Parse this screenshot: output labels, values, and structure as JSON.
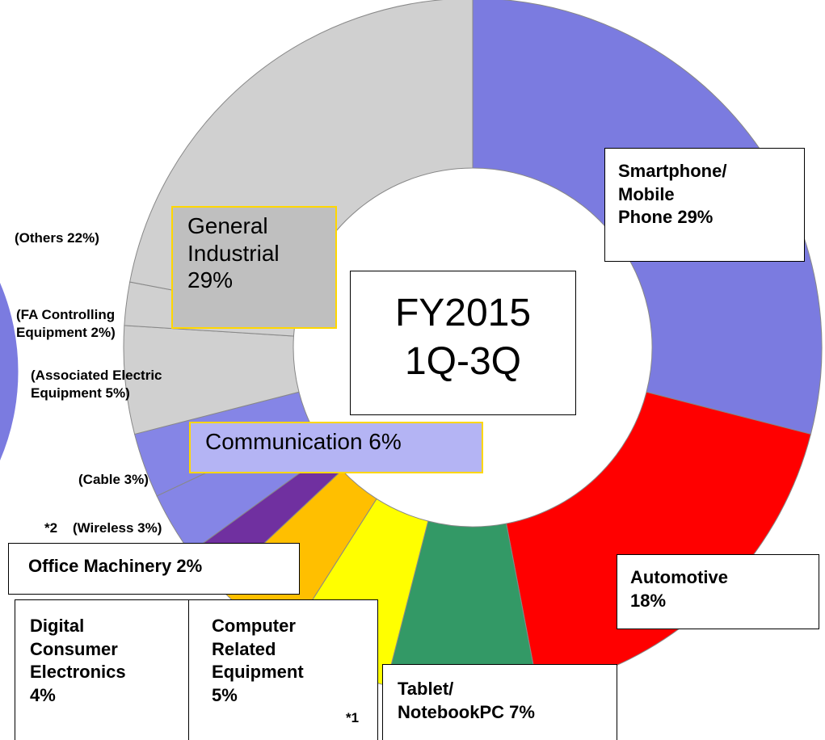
{
  "chart_data": {
    "type": "donut",
    "categories": [
      "Smartphone/\nMobile\nPhone 29%",
      "Automotive\n18%",
      "Tablet/\nNotebookPC 7%",
      "Computer\nRelated\nEquipment\n5%",
      "Digital\nConsumer\nElectronics\n4%",
      "Office Machinery 2%",
      "(Wireless 3%)",
      "(Cable 3%)",
      "(Associated Electric\nEquipment  5%)",
      "(FA Controlling\nEquipment 2%)",
      "(Others 22%)"
    ],
    "values": [
      29,
      18,
      7,
      5,
      4,
      2,
      3,
      3,
      5,
      2,
      22
    ],
    "colors": [
      "#7b7be0",
      "#ff0000",
      "#339966",
      "#ffff00",
      "#ffbf00",
      "#7030a0",
      "#8585e6",
      "#8585e6",
      "#d0d0d0",
      "#d0d0d0",
      "#d0d0d0"
    ],
    "center_label": "FY2015\n1Q-3Q",
    "group_labels": [
      "General\nIndustrial\n29%",
      "Communication 6%"
    ],
    "footnotes": [
      "*1",
      "*2"
    ]
  }
}
